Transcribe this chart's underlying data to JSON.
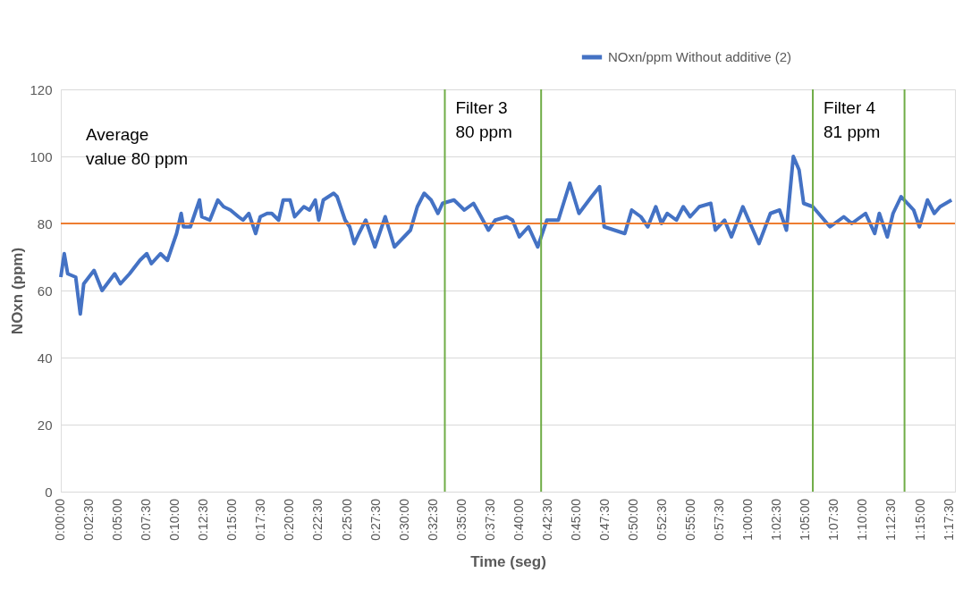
{
  "chart_data": {
    "type": "line",
    "xlabel": "Time (seg)",
    "ylabel": "NOxn (ppm)",
    "xlim": [
      0,
      4680
    ],
    "ylim": [
      0,
      120
    ],
    "yticks": [
      0,
      20,
      40,
      60,
      80,
      100,
      120
    ],
    "xticks": [
      {
        "value": 0,
        "label": "0:00:00"
      },
      {
        "value": 150,
        "label": "0:02:30"
      },
      {
        "value": 300,
        "label": "0:05:00"
      },
      {
        "value": 450,
        "label": "0:07:30"
      },
      {
        "value": 600,
        "label": "0:10:00"
      },
      {
        "value": 750,
        "label": "0:12:30"
      },
      {
        "value": 900,
        "label": "0:15:00"
      },
      {
        "value": 1050,
        "label": "0:17:30"
      },
      {
        "value": 1200,
        "label": "0:20:00"
      },
      {
        "value": 1350,
        "label": "0:22:30"
      },
      {
        "value": 1500,
        "label": "0:25:00"
      },
      {
        "value": 1650,
        "label": "0:27:30"
      },
      {
        "value": 1800,
        "label": "0:30:00"
      },
      {
        "value": 1950,
        "label": "0:32:30"
      },
      {
        "value": 2100,
        "label": "0:35:00"
      },
      {
        "value": 2250,
        "label": "0:37:30"
      },
      {
        "value": 2400,
        "label": "0:40:00"
      },
      {
        "value": 2550,
        "label": "0:42:30"
      },
      {
        "value": 2700,
        "label": "0:45:00"
      },
      {
        "value": 2850,
        "label": "0:47:30"
      },
      {
        "value": 3000,
        "label": "0:50:00"
      },
      {
        "value": 3150,
        "label": "0:52:30"
      },
      {
        "value": 3300,
        "label": "0:55:00"
      },
      {
        "value": 3450,
        "label": "0:57:30"
      },
      {
        "value": 3600,
        "label": "1:00:00"
      },
      {
        "value": 3750,
        "label": "1:02:30"
      },
      {
        "value": 3900,
        "label": "1:05:00"
      },
      {
        "value": 4050,
        "label": "1:07:30"
      },
      {
        "value": 4200,
        "label": "1:10:00"
      },
      {
        "value": 4350,
        "label": "1:12:30"
      },
      {
        "value": 4500,
        "label": "1:15:00"
      },
      {
        "value": 4650,
        "label": "1:17:30"
      }
    ],
    "grid": "y",
    "legend": "top right",
    "line_style": "solid",
    "marker": "none",
    "annotations": [
      "Average\nvalue 80 ppm"
    ],
    "series": [
      {
        "name": "NOxn/ppm Without additive (2)",
        "color": "#4472c4",
        "x": [
          0,
          18,
          36,
          78,
          102,
          120,
          174,
          216,
          282,
          312,
          360,
          414,
          450,
          474,
          522,
          558,
          582,
          606,
          630,
          642,
          678,
          702,
          726,
          738,
          780,
          822,
          852,
          888,
          930,
          954,
          984,
          1020,
          1044,
          1080,
          1104,
          1140,
          1164,
          1200,
          1224,
          1272,
          1302,
          1332,
          1350,
          1374,
          1428,
          1446,
          1488,
          1512,
          1536,
          1560,
          1596,
          1644,
          1698,
          1746,
          1830,
          1866,
          1902,
          1938,
          1974,
          1998,
          2058,
          2112,
          2160,
          2190,
          2238,
          2274,
          2334,
          2364,
          2400,
          2448,
          2496,
          2544,
          2604,
          2664,
          2712,
          2778,
          2820,
          2844,
          2898,
          2952,
          2988,
          3036,
          3072,
          3114,
          3144,
          3174,
          3222,
          3258,
          3294,
          3342,
          3402,
          3426,
          3474,
          3510,
          3570,
          3654,
          3714,
          3762,
          3798,
          3834,
          3864,
          3888,
          3936,
          4026,
          4098,
          4140,
          4212,
          4260,
          4284,
          4326,
          4356,
          4398,
          4464,
          4494,
          4536,
          4572,
          4602,
          4662
        ],
        "values": [
          64,
          71,
          65,
          64,
          53,
          62,
          66,
          60,
          65,
          62,
          65,
          69,
          71,
          68,
          71,
          69,
          73,
          77,
          83,
          79,
          79,
          83,
          87,
          82,
          81,
          87,
          85,
          84,
          82,
          81,
          83,
          77,
          82,
          83,
          83,
          81,
          87,
          87,
          82,
          85,
          84,
          87,
          81,
          87,
          89,
          88,
          81,
          79,
          74,
          77,
          81,
          73,
          82,
          73,
          78,
          85,
          89,
          87,
          83,
          86,
          87,
          84,
          86,
          83,
          78,
          81,
          82,
          81,
          76,
          79,
          73,
          81,
          81,
          92,
          83,
          88,
          91,
          79,
          78,
          77,
          84,
          82,
          79,
          85,
          80,
          83,
          81,
          85,
          82,
          85,
          86,
          78,
          81,
          76,
          85,
          74,
          83,
          84,
          78,
          100,
          96,
          86,
          85,
          79,
          82,
          80,
          83,
          77,
          83,
          76,
          83,
          88,
          84,
          79,
          87,
          83,
          85,
          87
        ]
      }
    ],
    "ref_lines": [
      {
        "axis": "y",
        "value": 80,
        "label": null,
        "color": "#ed7d31"
      },
      {
        "axis": "x",
        "value": 2010,
        "label": "Filter 3\n80 ppm",
        "color": "#70ad47"
      },
      {
        "axis": "x",
        "value": 2514,
        "label": null,
        "color": "#70ad47"
      },
      {
        "axis": "x",
        "value": 3936,
        "label": "Filter 4\n81 ppm",
        "color": "#70ad47"
      },
      {
        "axis": "x",
        "value": 4416,
        "label": null,
        "color": "#70ad47"
      }
    ]
  }
}
